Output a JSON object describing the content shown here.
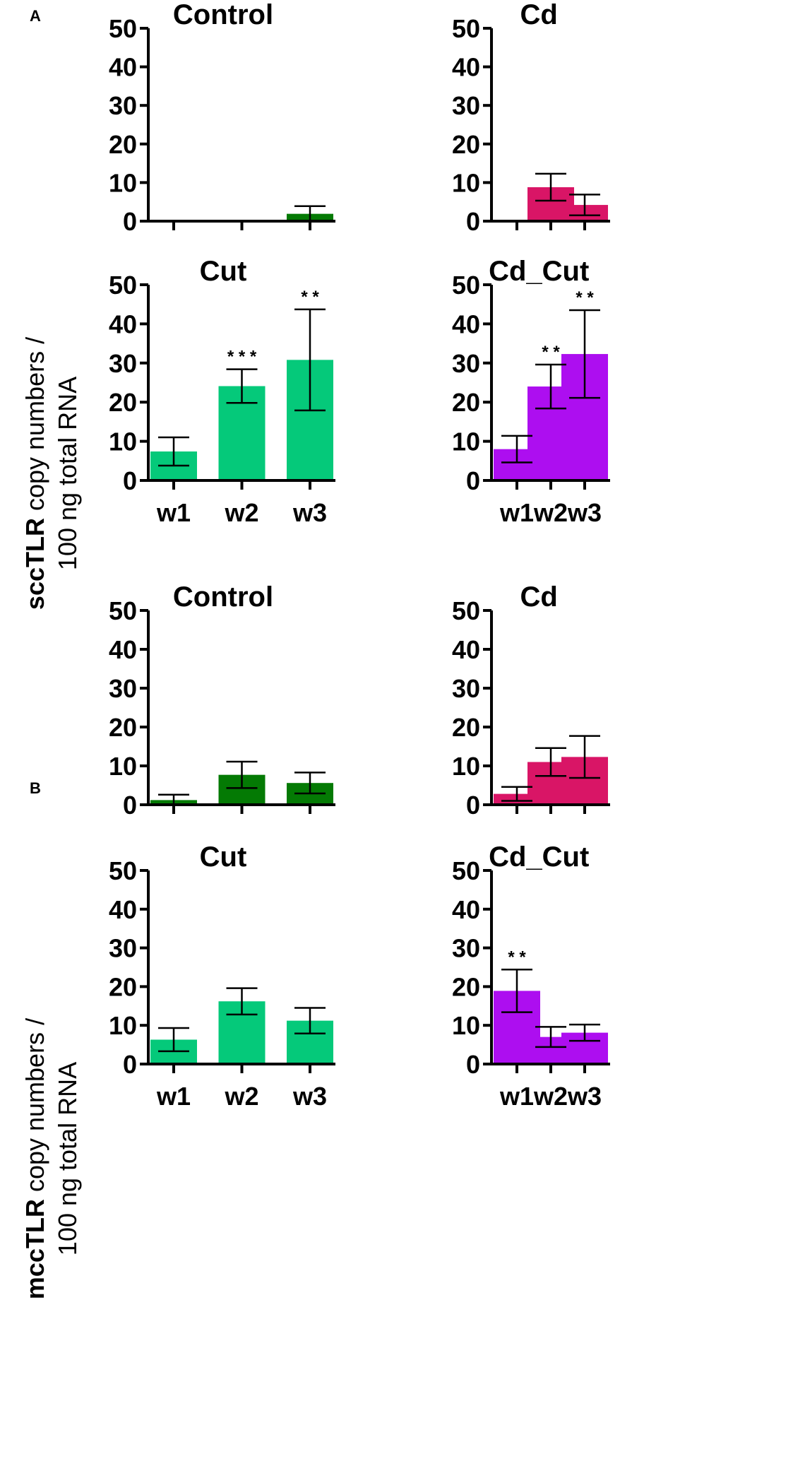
{
  "figure": {
    "panel_labels": [
      "A",
      "B"
    ],
    "ylabels": [
      {
        "bold": "sccTLR",
        "line1_rest": " copy numbers /",
        "line2": "100 ng total RNA"
      },
      {
        "bold": "mccTLR",
        "line1_rest": " copy numbers /",
        "line2": "100 ng total RNA"
      }
    ]
  },
  "colors": {
    "Control": "#047a04",
    "Cd": "#d91566",
    "Cut": "#05c97a",
    "Cd_Cut": "#ad0ef0",
    "axis": "#000000"
  },
  "chart_data": [
    {
      "type": "bar",
      "panel": "A",
      "title": "Control",
      "categories": [
        "w1",
        "w2",
        "w3"
      ],
      "values": [
        0,
        0,
        1.9
      ],
      "error": [
        0,
        0,
        2
      ],
      "significance": [
        "",
        "",
        ""
      ],
      "ylim": [
        0,
        50
      ],
      "yticks": [
        0,
        10,
        20,
        30,
        40,
        50
      ],
      "show_xlabels": false
    },
    {
      "type": "bar",
      "panel": "A",
      "title": "Cd",
      "categories": [
        "w1",
        "w2",
        "w3"
      ],
      "values": [
        0,
        8.8,
        4.2
      ],
      "error": [
        0,
        3.5,
        2.7
      ],
      "significance": [
        "",
        "",
        ""
      ],
      "ylim": [
        0,
        50
      ],
      "yticks": [
        0,
        10,
        20,
        30,
        40,
        50
      ],
      "show_xlabels": false
    },
    {
      "type": "bar",
      "panel": "A",
      "title": "Cut",
      "categories": [
        "w1",
        "w2",
        "w3"
      ],
      "values": [
        7.4,
        24.1,
        30.8
      ],
      "error": [
        3.6,
        4.3,
        12.9
      ],
      "significance": [
        "",
        "* * *",
        "* *"
      ],
      "ylim": [
        0,
        50
      ],
      "yticks": [
        0,
        10,
        20,
        30,
        40,
        50
      ],
      "show_xlabels": true
    },
    {
      "type": "bar",
      "panel": "A",
      "title": "Cd_Cut",
      "categories": [
        "w1",
        "w2",
        "w3"
      ],
      "values": [
        8.0,
        24.0,
        32.3
      ],
      "error": [
        3.4,
        5.6,
        11.2
      ],
      "significance": [
        "",
        "* *",
        "* *"
      ],
      "ylim": [
        0,
        50
      ],
      "yticks": [
        0,
        10,
        20,
        30,
        40,
        50
      ],
      "show_xlabels": true
    },
    {
      "type": "bar",
      "panel": "B",
      "title": "Control",
      "categories": [
        "w1",
        "w2",
        "w3"
      ],
      "values": [
        1.2,
        7.7,
        5.6
      ],
      "error": [
        1.4,
        3.4,
        2.7
      ],
      "significance": [
        "",
        "",
        ""
      ],
      "ylim": [
        0,
        50
      ],
      "yticks": [
        0,
        10,
        20,
        30,
        40,
        50
      ],
      "show_xlabels": false
    },
    {
      "type": "bar",
      "panel": "B",
      "title": "Cd",
      "categories": [
        "w1",
        "w2",
        "w3"
      ],
      "values": [
        2.8,
        11.0,
        12.3
      ],
      "error": [
        1.8,
        3.6,
        5.4
      ],
      "significance": [
        "",
        "",
        ""
      ],
      "ylim": [
        0,
        50
      ],
      "yticks": [
        0,
        10,
        20,
        30,
        40,
        50
      ],
      "show_xlabels": false
    },
    {
      "type": "bar",
      "panel": "B",
      "title": "Cut",
      "categories": [
        "w1",
        "w2",
        "w3"
      ],
      "values": [
        6.3,
        16.2,
        11.2
      ],
      "error": [
        3.0,
        3.4,
        3.3
      ],
      "significance": [
        "",
        "",
        ""
      ],
      "ylim": [
        0,
        50
      ],
      "yticks": [
        0,
        10,
        20,
        30,
        40,
        50
      ],
      "show_xlabels": true
    },
    {
      "type": "bar",
      "panel": "B",
      "title": "Cd_Cut",
      "categories": [
        "w1",
        "w2",
        "w3"
      ],
      "values": [
        18.9,
        7.0,
        8.1
      ],
      "error": [
        5.5,
        2.6,
        2.1
      ],
      "significance": [
        "* *",
        "",
        ""
      ],
      "ylim": [
        0,
        50
      ],
      "yticks": [
        0,
        10,
        20,
        30,
        40,
        50
      ],
      "show_xlabels": true
    }
  ]
}
